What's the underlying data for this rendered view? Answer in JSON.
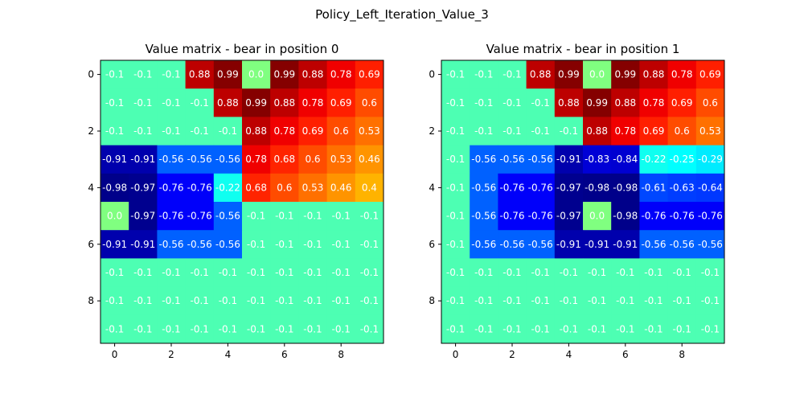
{
  "chart_data": {
    "suptitle": "Policy_Left_Iteration_Value_3",
    "type": "heatmap",
    "colormap": "jet",
    "value_range": [
      -1,
      1
    ],
    "x_ticks": [
      "0",
      "2",
      "4",
      "6",
      "8"
    ],
    "y_ticks": [
      "0",
      "2",
      "4",
      "6",
      "8"
    ],
    "panels": [
      {
        "title": "Value matrix - bear in position 0",
        "cells": [
          [
            -0.1,
            -0.1,
            -0.1,
            0.88,
            0.99,
            0.0,
            0.99,
            0.88,
            0.78,
            0.69
          ],
          [
            -0.1,
            -0.1,
            -0.1,
            -0.1,
            0.88,
            0.99,
            0.88,
            0.78,
            0.69,
            0.6
          ],
          [
            -0.1,
            -0.1,
            -0.1,
            -0.1,
            -0.1,
            0.88,
            0.78,
            0.69,
            0.6,
            0.53
          ],
          [
            -0.91,
            -0.91,
            -0.56,
            -0.56,
            -0.56,
            0.78,
            0.68,
            0.6,
            0.53,
            0.46
          ],
          [
            -0.98,
            -0.97,
            -0.76,
            -0.76,
            -0.22,
            0.68,
            0.6,
            0.53,
            0.46,
            0.4
          ],
          [
            0.0,
            -0.97,
            -0.76,
            -0.76,
            -0.56,
            -0.1,
            -0.1,
            -0.1,
            -0.1,
            -0.1
          ],
          [
            -0.91,
            -0.91,
            -0.56,
            -0.56,
            -0.56,
            -0.1,
            -0.1,
            -0.1,
            -0.1,
            -0.1
          ],
          [
            -0.1,
            -0.1,
            -0.1,
            -0.1,
            -0.1,
            -0.1,
            -0.1,
            -0.1,
            -0.1,
            -0.1
          ],
          [
            -0.1,
            -0.1,
            -0.1,
            -0.1,
            -0.1,
            -0.1,
            -0.1,
            -0.1,
            -0.1,
            -0.1
          ],
          [
            -0.1,
            -0.1,
            -0.1,
            -0.1,
            -0.1,
            -0.1,
            -0.1,
            -0.1,
            -0.1,
            -0.1
          ]
        ],
        "labels": [
          [
            "-0.1",
            "-0.1",
            "-0.1",
            "0.88",
            "0.99",
            "0.0",
            "0.99",
            "0.88",
            "0.78",
            "0.69"
          ],
          [
            "-0.1",
            "-0.1",
            "-0.1",
            "-0.1",
            "0.88",
            "0.99",
            "0.88",
            "0.78",
            "0.69",
            "0.6"
          ],
          [
            "-0.1",
            "-0.1",
            "-0.1",
            "-0.1",
            "-0.1",
            "0.88",
            "0.78",
            "0.69",
            "0.6",
            "0.53"
          ],
          [
            "-0.91",
            "-0.91",
            "-0.56",
            "-0.56",
            "-0.56",
            "0.78",
            "0.68",
            "0.6",
            "0.53",
            "0.46"
          ],
          [
            "-0.98",
            "-0.97",
            "-0.76",
            "-0.76",
            "-0.22",
            "0.68",
            "0.6",
            "0.53",
            "0.46",
            "0.4"
          ],
          [
            "0.0",
            "-0.97",
            "-0.76",
            "-0.76",
            "-0.56",
            "-0.1",
            "-0.1",
            "-0.1",
            "-0.1",
            "-0.1"
          ],
          [
            "-0.91",
            "-0.91",
            "-0.56",
            "-0.56",
            "-0.56",
            "-0.1",
            "-0.1",
            "-0.1",
            "-0.1",
            "-0.1"
          ],
          [
            "-0.1",
            "-0.1",
            "-0.1",
            "-0.1",
            "-0.1",
            "-0.1",
            "-0.1",
            "-0.1",
            "-0.1",
            "-0.1"
          ],
          [
            "-0.1",
            "-0.1",
            "-0.1",
            "-0.1",
            "-0.1",
            "-0.1",
            "-0.1",
            "-0.1",
            "-0.1",
            "-0.1"
          ],
          [
            "-0.1",
            "-0.1",
            "-0.1",
            "-0.1",
            "-0.1",
            "-0.1",
            "-0.1",
            "-0.1",
            "-0.1",
            "-0.1"
          ]
        ]
      },
      {
        "title": "Value matrix - bear in position 1",
        "cells": [
          [
            -0.1,
            -0.1,
            -0.1,
            0.88,
            0.99,
            0.0,
            0.99,
            0.88,
            0.78,
            0.69
          ],
          [
            -0.1,
            -0.1,
            -0.1,
            -0.1,
            0.88,
            0.99,
            0.88,
            0.78,
            0.69,
            0.6
          ],
          [
            -0.1,
            -0.1,
            -0.1,
            -0.1,
            -0.1,
            0.88,
            0.78,
            0.69,
            0.6,
            0.53
          ],
          [
            -0.1,
            -0.56,
            -0.56,
            -0.56,
            -0.91,
            -0.83,
            -0.84,
            -0.22,
            -0.25,
            -0.29
          ],
          [
            -0.1,
            -0.56,
            -0.76,
            -0.76,
            -0.97,
            -0.98,
            -0.98,
            -0.61,
            -0.63,
            -0.64
          ],
          [
            -0.1,
            -0.56,
            -0.76,
            -0.76,
            -0.97,
            0.0,
            -0.98,
            -0.76,
            -0.76,
            -0.76
          ],
          [
            -0.1,
            -0.56,
            -0.56,
            -0.56,
            -0.91,
            -0.91,
            -0.91,
            -0.56,
            -0.56,
            -0.56
          ],
          [
            -0.1,
            -0.1,
            -0.1,
            -0.1,
            -0.1,
            -0.1,
            -0.1,
            -0.1,
            -0.1,
            -0.1
          ],
          [
            -0.1,
            -0.1,
            -0.1,
            -0.1,
            -0.1,
            -0.1,
            -0.1,
            -0.1,
            -0.1,
            -0.1
          ],
          [
            -0.1,
            -0.1,
            -0.1,
            -0.1,
            -0.1,
            -0.1,
            -0.1,
            -0.1,
            -0.1,
            -0.1
          ]
        ],
        "labels": [
          [
            "-0.1",
            "-0.1",
            "-0.1",
            "0.88",
            "0.99",
            "0.0",
            "0.99",
            "0.88",
            "0.78",
            "0.69"
          ],
          [
            "-0.1",
            "-0.1",
            "-0.1",
            "-0.1",
            "0.88",
            "0.99",
            "0.88",
            "0.78",
            "0.69",
            "0.6"
          ],
          [
            "-0.1",
            "-0.1",
            "-0.1",
            "-0.1",
            "-0.1",
            "0.88",
            "0.78",
            "0.69",
            "0.6",
            "0.53"
          ],
          [
            "-0.1",
            "-0.56",
            "-0.56",
            "-0.56",
            "-0.91",
            "-0.83",
            "-0.84",
            "-0.22",
            "-0.25",
            "-0.29"
          ],
          [
            "-0.1",
            "-0.56",
            "-0.76",
            "-0.76",
            "-0.97",
            "-0.98",
            "-0.98",
            "-0.61",
            "-0.63",
            "-0.64"
          ],
          [
            "-0.1",
            "-0.56",
            "-0.76",
            "-0.76",
            "-0.97",
            "0.0",
            "-0.98",
            "-0.76",
            "-0.76",
            "-0.76"
          ],
          [
            "-0.1",
            "-0.56",
            "-0.56",
            "-0.56",
            "-0.91",
            "-0.91",
            "-0.91",
            "-0.56",
            "-0.56",
            "-0.56"
          ],
          [
            "-0.1",
            "-0.1",
            "-0.1",
            "-0.1",
            "-0.1",
            "-0.1",
            "-0.1",
            "-0.1",
            "-0.1",
            "-0.1"
          ],
          [
            "-0.1",
            "-0.1",
            "-0.1",
            "-0.1",
            "-0.1",
            "-0.1",
            "-0.1",
            "-0.1",
            "-0.1",
            "-0.1"
          ],
          [
            "-0.1",
            "-0.1",
            "-0.1",
            "-0.1",
            "-0.1",
            "-0.1",
            "-0.1",
            "-0.1",
            "-0.1",
            "-0.1"
          ]
        ]
      }
    ]
  }
}
